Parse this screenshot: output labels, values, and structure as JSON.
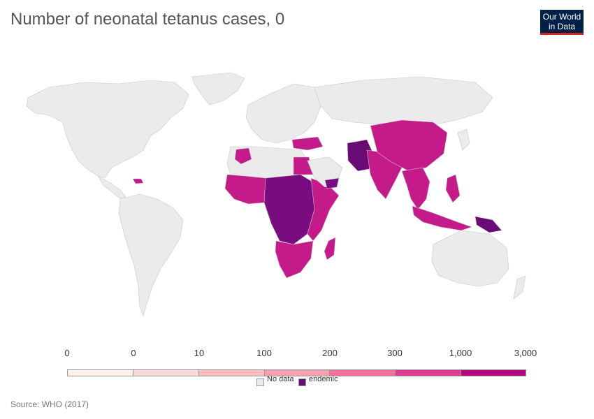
{
  "title": "Number of neonatal tetanus cases, 0",
  "logo": {
    "line1": "Our World",
    "line2": "in Data",
    "bg": "#002147",
    "accent": "#ce261e"
  },
  "legend": {
    "ticks": [
      "0",
      "0",
      "10",
      "100",
      "200",
      "300",
      "1,000",
      "3,000"
    ],
    "colors": [
      "#fff1ec",
      "#fcdada",
      "#fbbfbf",
      "#f8a0b2",
      "#f26f9a",
      "#de3c94",
      "#b2057f"
    ],
    "categories": [
      {
        "label": "No data",
        "color": "#ebebeb"
      },
      {
        "label": "endemic",
        "color": "#6a0a75"
      }
    ]
  },
  "map_colors": {
    "no_data": "#ebebeb",
    "border": "#c8c8c8",
    "high": "#b2057f",
    "mid": "#c51b8a",
    "endemic": "#6a0a75"
  },
  "source": "Source: WHO (2017)"
}
